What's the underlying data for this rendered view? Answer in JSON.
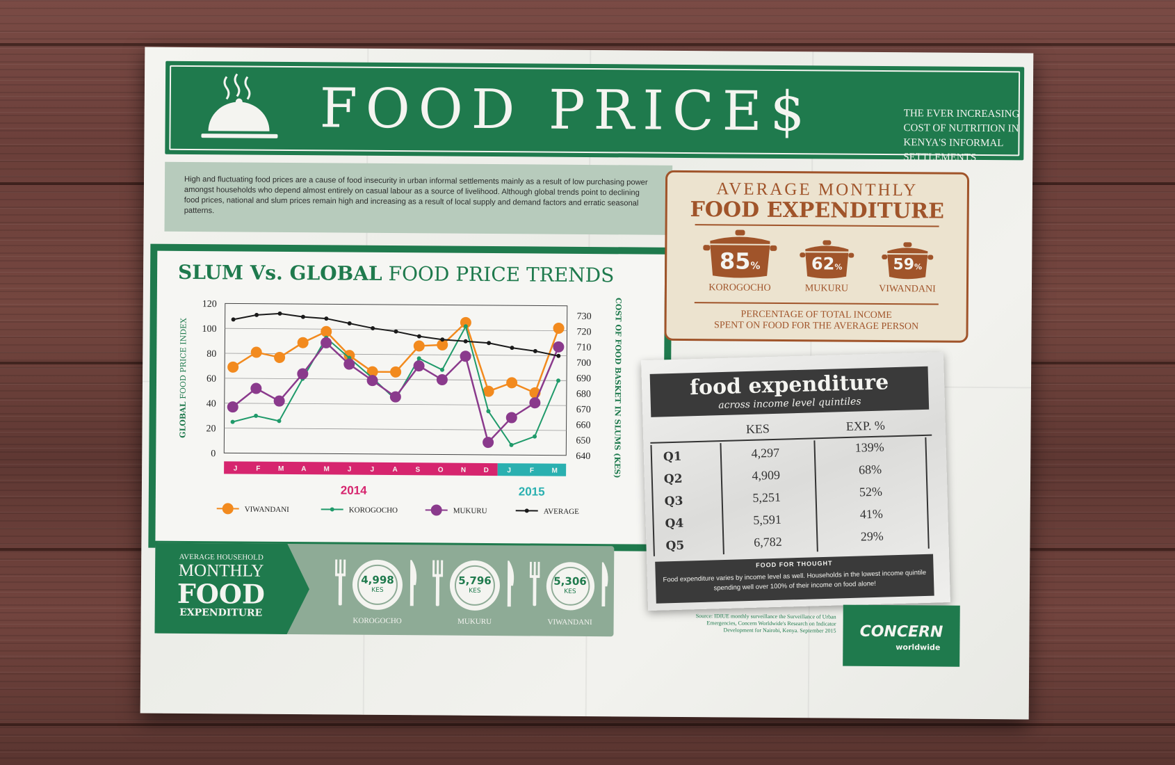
{
  "header": {
    "title": "FOOD PRICE$",
    "subtitle": "THE EVER INCREASING COST OF NUTRITION IN KENYA'S INFORMAL SETTLEMENTS"
  },
  "intro": "High and fluctuating food prices are a cause of food insecurity in urban informal settlements mainly as a result of low purchasing power amongst households who depend almost entirely on casual labour as a source of livelihood. Although global trends point to declining food prices, national and slum prices remain high and increasing as a result of local supply and demand factors and erratic seasonal patterns.",
  "chart_panel": {
    "title_bold": "SLUM Vs. GLOBAL",
    "title_rest": "FOOD PRICE TRENDS",
    "year_2014": "2014",
    "year_2015": "2015"
  },
  "chart_data": {
    "type": "line",
    "title": "SLUM Vs. GLOBAL FOOD PRICE TRENDS",
    "ylabel_left_prefix": "GLOBAL",
    "ylabel_left_rest": "FOOD PRICE INDEX",
    "ylabel_right": "COST OF FOOD BASKET IN SLUMS (KES)",
    "categories": [
      "J",
      "F",
      "M",
      "A",
      "M",
      "J",
      "J",
      "A",
      "S",
      "O",
      "N",
      "D",
      "J",
      "F",
      "M"
    ],
    "years": [
      {
        "label": "2014",
        "months": 12,
        "color": "#d6256e"
      },
      {
        "label": "2015",
        "months": 3,
        "color": "#2ab0b0"
      }
    ],
    "ylim_left": [
      0,
      120
    ],
    "yticks_left": [
      0,
      20,
      40,
      60,
      80,
      100,
      120
    ],
    "ylim_right": [
      640,
      730
    ],
    "yticks_right": [
      640,
      650,
      660,
      670,
      680,
      690,
      700,
      710,
      720,
      730
    ],
    "grid": true,
    "legend_position": "bottom",
    "series": [
      {
        "name": "VIWANDANI",
        "color": "#f28a1e",
        "marker": "large",
        "axis": "left",
        "values": [
          69,
          81,
          77,
          89,
          98,
          79,
          66,
          66,
          87,
          88,
          106,
          51,
          58,
          50,
          102
        ]
      },
      {
        "name": "KOROGOCHO",
        "color": "#1f9a6a",
        "marker": "small",
        "axis": "left",
        "values": [
          25,
          30,
          26,
          60,
          93,
          77,
          61,
          44,
          77,
          68,
          103,
          35,
          8,
          15,
          60
        ]
      },
      {
        "name": "MUKURU",
        "color": "#8a3a8c",
        "marker": "large",
        "axis": "left",
        "values": [
          37,
          52,
          42,
          64,
          89,
          72,
          59,
          46,
          71,
          60,
          79,
          10,
          30,
          42,
          87
        ]
      },
      {
        "name": "AVERAGE",
        "color": "#1a1a1a",
        "marker": "small",
        "axis": "right",
        "values": [
          726,
          729,
          730,
          728,
          727,
          724,
          721,
          719,
          716,
          714,
          713,
          712,
          709,
          707,
          704
        ]
      }
    ]
  },
  "avg_expenditure": {
    "title_1": "AVERAGE MONTHLY",
    "title_2": "FOOD EXPENDITURE",
    "items": [
      {
        "value": "85",
        "unit": "%",
        "label": "KOROGOCHO"
      },
      {
        "value": "62",
        "unit": "%",
        "label": "MUKURU"
      },
      {
        "value": "59",
        "unit": "%",
        "label": "VIWANDANI"
      }
    ],
    "footnote_1": "PERCENTAGE OF TOTAL INCOME",
    "footnote_2": "SPENT ON FOOD FOR THE AVERAGE PERSON"
  },
  "quintiles": {
    "title": "food expenditure",
    "subtitle": "across income level quintiles",
    "col_kes": "KES",
    "col_exp": "EXP. %",
    "rows": [
      {
        "q": "Q1",
        "kes": "4,297",
        "exp": "139%"
      },
      {
        "q": "Q2",
        "kes": "4,909",
        "exp": "68%"
      },
      {
        "q": "Q3",
        "kes": "5,251",
        "exp": "52%"
      },
      {
        "q": "Q4",
        "kes": "5,591",
        "exp": "41%"
      },
      {
        "q": "Q5",
        "kes": "6,782",
        "exp": "29%"
      }
    ],
    "thought_heading": "FOOD FOR THOUGHT",
    "thought_body": "Food expenditure varies by income level as well. Households in the lowest income quintile spending well over 100% of their income on food alone!"
  },
  "household": {
    "line_1": "AVERAGE HOUSEHOLD",
    "line_2": "MONTHLY",
    "line_3": "FOOD",
    "line_4": "EXPENDITURE",
    "plates": [
      {
        "value": "4,998",
        "unit": "KES",
        "label": "KOROGOCHO"
      },
      {
        "value": "5,796",
        "unit": "KES",
        "label": "MUKURU"
      },
      {
        "value": "5,306",
        "unit": "KES",
        "label": "VIWANDANI"
      }
    ]
  },
  "source": "Source: IDIUE monthly surveillance the Surveillance of Urban Emergencies, Concern Worldwide's Research on Indicator Development for Nairobi, Kenya. September 2015",
  "logo": {
    "name": "CONCERN",
    "sub": "worldwide"
  },
  "colors": {
    "green": "#1f7a4d",
    "rust": "#a0542a",
    "dark": "#3a3a3a",
    "sage": "#8eab96"
  }
}
